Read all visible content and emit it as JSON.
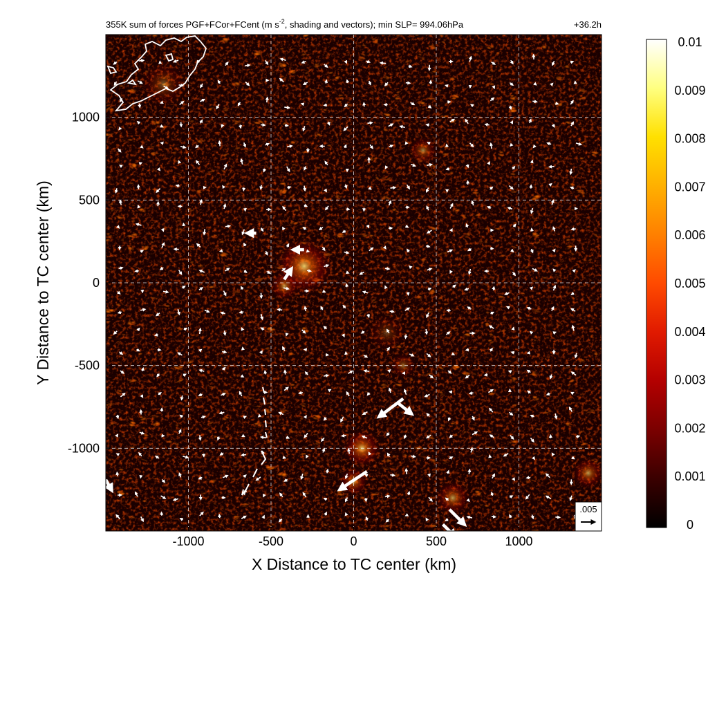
{
  "chart_data": {
    "type": "heatmap",
    "title_left": "355K sum of forces PGF+FCor+FCent (m s",
    "title_sup": "-2",
    "title_right_part": ", shading and vectors); min SLP= 994.06hPa",
    "time_label": "+36.2h",
    "xlabel": "X Distance to TC center (km)",
    "ylabel": "Y Distance to TC center (km)",
    "xlim": [
      -1500,
      1500
    ],
    "ylim": [
      -1500,
      1500
    ],
    "x_ticks": [
      -1000,
      -500,
      0,
      500,
      1000
    ],
    "y_ticks": [
      1000,
      500,
      0,
      -500,
      -1000
    ],
    "grid": "dashed",
    "colorbar": {
      "min": 0,
      "max": 0.01,
      "ticks": [
        "0.01",
        "0.009",
        "0.008",
        "0.007",
        "0.006",
        "0.005",
        "0.004",
        "0.003",
        "0.002",
        "0.001",
        "0"
      ],
      "colors": [
        "#000000",
        "#3a0000",
        "#7a0000",
        "#b30000",
        "#e01a00",
        "#ff4a00",
        "#ff8000",
        "#ffb000",
        "#ffe000",
        "#ffff80",
        "#ffffff"
      ]
    },
    "reference_vector": {
      "label": ".005",
      "value": 0.005
    },
    "hotspots": [
      {
        "x": -300,
        "y": 100,
        "intensity": 0.0045,
        "radius": 180
      },
      {
        "x": -420,
        "y": -20,
        "intensity": 0.0035,
        "radius": 90
      },
      {
        "x": 50,
        "y": -1000,
        "intensity": 0.0045,
        "radius": 120
      },
      {
        "x": 0,
        "y": -1200,
        "intensity": 0.004,
        "radius": 90
      },
      {
        "x": 420,
        "y": 800,
        "intensity": 0.003,
        "radius": 90
      },
      {
        "x": 600,
        "y": -1300,
        "intensity": 0.0035,
        "radius": 110
      },
      {
        "x": 1420,
        "y": -1150,
        "intensity": 0.0035,
        "radius": 100
      },
      {
        "x": 300,
        "y": -500,
        "intensity": 0.0025,
        "radius": 80
      },
      {
        "x": -1150,
        "y": 1200,
        "intensity": 0.002,
        "radius": 150
      },
      {
        "x": 200,
        "y": -300,
        "intensity": 0.0015,
        "radius": 120
      }
    ],
    "large_vectors": [
      {
        "x": 300,
        "y": -700,
        "u": -0.004,
        "v": -0.003
      },
      {
        "x": 260,
        "y": -720,
        "u": 0.0025,
        "v": -0.002
      },
      {
        "x": 80,
        "y": -1140,
        "u": -0.0045,
        "v": -0.003
      },
      {
        "x": 580,
        "y": -1370,
        "u": 0.0025,
        "v": -0.0025
      },
      {
        "x": 540,
        "y": -1460,
        "u": 0.002,
        "v": -0.002
      },
      {
        "x": -420,
        "y": 20,
        "u": 0.0012,
        "v": 0.0018
      },
      {
        "x": -300,
        "y": 200,
        "u": -0.0018,
        "v": 0.0
      },
      {
        "x": -590,
        "y": 300,
        "u": -0.0015,
        "v": 0.0
      },
      {
        "x": -1500,
        "y": -1190,
        "u": 0.001,
        "v": -0.0018
      }
    ]
  }
}
